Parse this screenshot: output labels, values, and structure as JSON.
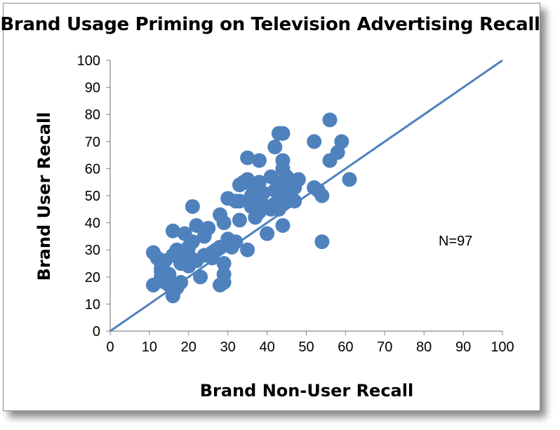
{
  "chart_data": {
    "type": "scatter",
    "title": "Brand Usage Priming on Television Advertising Recall",
    "xlabel": "Brand Non-User Recall",
    "ylabel": "Brand User Recall",
    "xlim": [
      0,
      100
    ],
    "ylim": [
      0,
      100
    ],
    "xticks": [
      0,
      10,
      20,
      30,
      40,
      50,
      60,
      70,
      80,
      90,
      100
    ],
    "yticks": [
      0,
      10,
      20,
      30,
      40,
      50,
      60,
      70,
      80,
      90,
      100
    ],
    "grid": false,
    "annotation": "N=97",
    "reference_line": {
      "from": [
        0,
        0
      ],
      "to": [
        100,
        100
      ]
    },
    "marker_color": "#4f81bd",
    "line_color": "#4f81bd",
    "points": [
      [
        11,
        29
      ],
      [
        11,
        17
      ],
      [
        12,
        27
      ],
      [
        13,
        25
      ],
      [
        13,
        22
      ],
      [
        13,
        20
      ],
      [
        14,
        18
      ],
      [
        14,
        26
      ],
      [
        15,
        17
      ],
      [
        16,
        37
      ],
      [
        16,
        13
      ],
      [
        16,
        28
      ],
      [
        17,
        30
      ],
      [
        17,
        16
      ],
      [
        18,
        18
      ],
      [
        18,
        26
      ],
      [
        19,
        36
      ],
      [
        19,
        29
      ],
      [
        20,
        31
      ],
      [
        20,
        24
      ],
      [
        21,
        46
      ],
      [
        21,
        33
      ],
      [
        22,
        39
      ],
      [
        22,
        26
      ],
      [
        23,
        20
      ],
      [
        24,
        35
      ],
      [
        24,
        28
      ],
      [
        25,
        38
      ],
      [
        26,
        27
      ],
      [
        27,
        30
      ],
      [
        28,
        43
      ],
      [
        28,
        17
      ],
      [
        29,
        40
      ],
      [
        29,
        25
      ],
      [
        29,
        21
      ],
      [
        29,
        18
      ],
      [
        30,
        34
      ],
      [
        30,
        49
      ],
      [
        31,
        31
      ],
      [
        32,
        33
      ],
      [
        33,
        54
      ],
      [
        33,
        48
      ],
      [
        33,
        41
      ],
      [
        34,
        55
      ],
      [
        35,
        64
      ],
      [
        35,
        56
      ],
      [
        35,
        30
      ],
      [
        36,
        50
      ],
      [
        36,
        46
      ],
      [
        37,
        47
      ],
      [
        37,
        42
      ],
      [
        38,
        63
      ],
      [
        38,
        55
      ],
      [
        38,
        44
      ],
      [
        39,
        51
      ],
      [
        39,
        46
      ],
      [
        40,
        36
      ],
      [
        41,
        57
      ],
      [
        41,
        45
      ],
      [
        42,
        68
      ],
      [
        42,
        52
      ],
      [
        42,
        47
      ],
      [
        43,
        73
      ],
      [
        43,
        55
      ],
      [
        43,
        45
      ],
      [
        44,
        73
      ],
      [
        44,
        63
      ],
      [
        44,
        60
      ],
      [
        44,
        39
      ],
      [
        44,
        50
      ],
      [
        45,
        57
      ],
      [
        45,
        48
      ],
      [
        46,
        55
      ],
      [
        46,
        51
      ],
      [
        47,
        48
      ],
      [
        47,
        53
      ],
      [
        48,
        56
      ],
      [
        52,
        70
      ],
      [
        52,
        53
      ],
      [
        53,
        52
      ],
      [
        54,
        50
      ],
      [
        54,
        33
      ],
      [
        56,
        78
      ],
      [
        56,
        63
      ],
      [
        58,
        66
      ],
      [
        59,
        70
      ],
      [
        61,
        56
      ],
      [
        13,
        23
      ],
      [
        15,
        21
      ],
      [
        18,
        25
      ],
      [
        20,
        28
      ],
      [
        26,
        29
      ],
      [
        32,
        48
      ],
      [
        40,
        46
      ],
      [
        43,
        52
      ],
      [
        28,
        31
      ],
      [
        36,
        54
      ]
    ]
  }
}
